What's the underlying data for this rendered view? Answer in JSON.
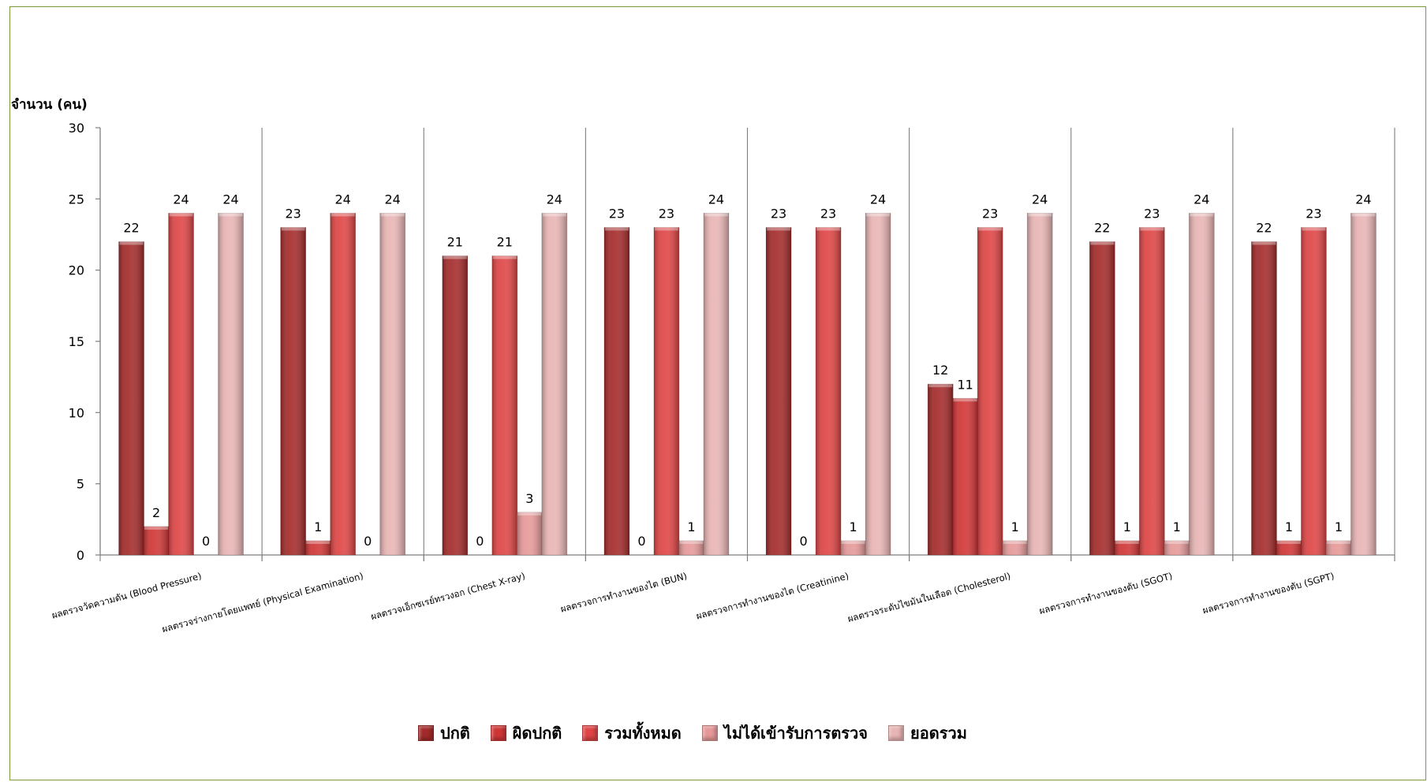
{
  "chart_data": {
    "type": "bar",
    "ylabel": "จำนวน (คน)",
    "ylim": [
      0,
      30
    ],
    "yticks": [
      0,
      5,
      10,
      15,
      20,
      25,
      30
    ],
    "categories": [
      "ผลตรวจวัดความดัน (Blood Pressure)",
      "ผลตรวจร่างกายโดยแพทย์ (Physical Examination)",
      "ผลตรวจเอ็กซเรย์ทรวงอก (Chest X-ray)",
      "ผลตรวจการทำงานของไต (BUN)",
      "ผลตรวจการทำงานของไต (Creatinine)",
      "ผลตรวจระดับไขมันในเลือด (Cholesterol)",
      "ผลตรวจการทำงานของตับ (SGOT)",
      "ผลตรวจการทำงานของตับ (SGPT)"
    ],
    "series": [
      {
        "name": "ปกติ",
        "color": "#a32a2a",
        "values": [
          22,
          23,
          21,
          23,
          23,
          12,
          22,
          22
        ]
      },
      {
        "name": "ผิดปกติ",
        "color": "#cf3535",
        "values": [
          2,
          1,
          0,
          0,
          0,
          11,
          1,
          1
        ]
      },
      {
        "name": "รวมทั้งหมด",
        "color": "#de4444",
        "values": [
          24,
          24,
          21,
          23,
          23,
          23,
          23,
          23
        ]
      },
      {
        "name": "ไม่ได้เข้ารับการตรวจ",
        "color": "#e59898",
        "values": [
          0,
          0,
          3,
          1,
          1,
          1,
          1,
          1
        ]
      },
      {
        "name": "ยอดรวม",
        "color": "#e8b4b4",
        "values": [
          24,
          24,
          24,
          24,
          24,
          24,
          24,
          24
        ]
      }
    ],
    "grid": false,
    "legend_position": "bottom"
  }
}
